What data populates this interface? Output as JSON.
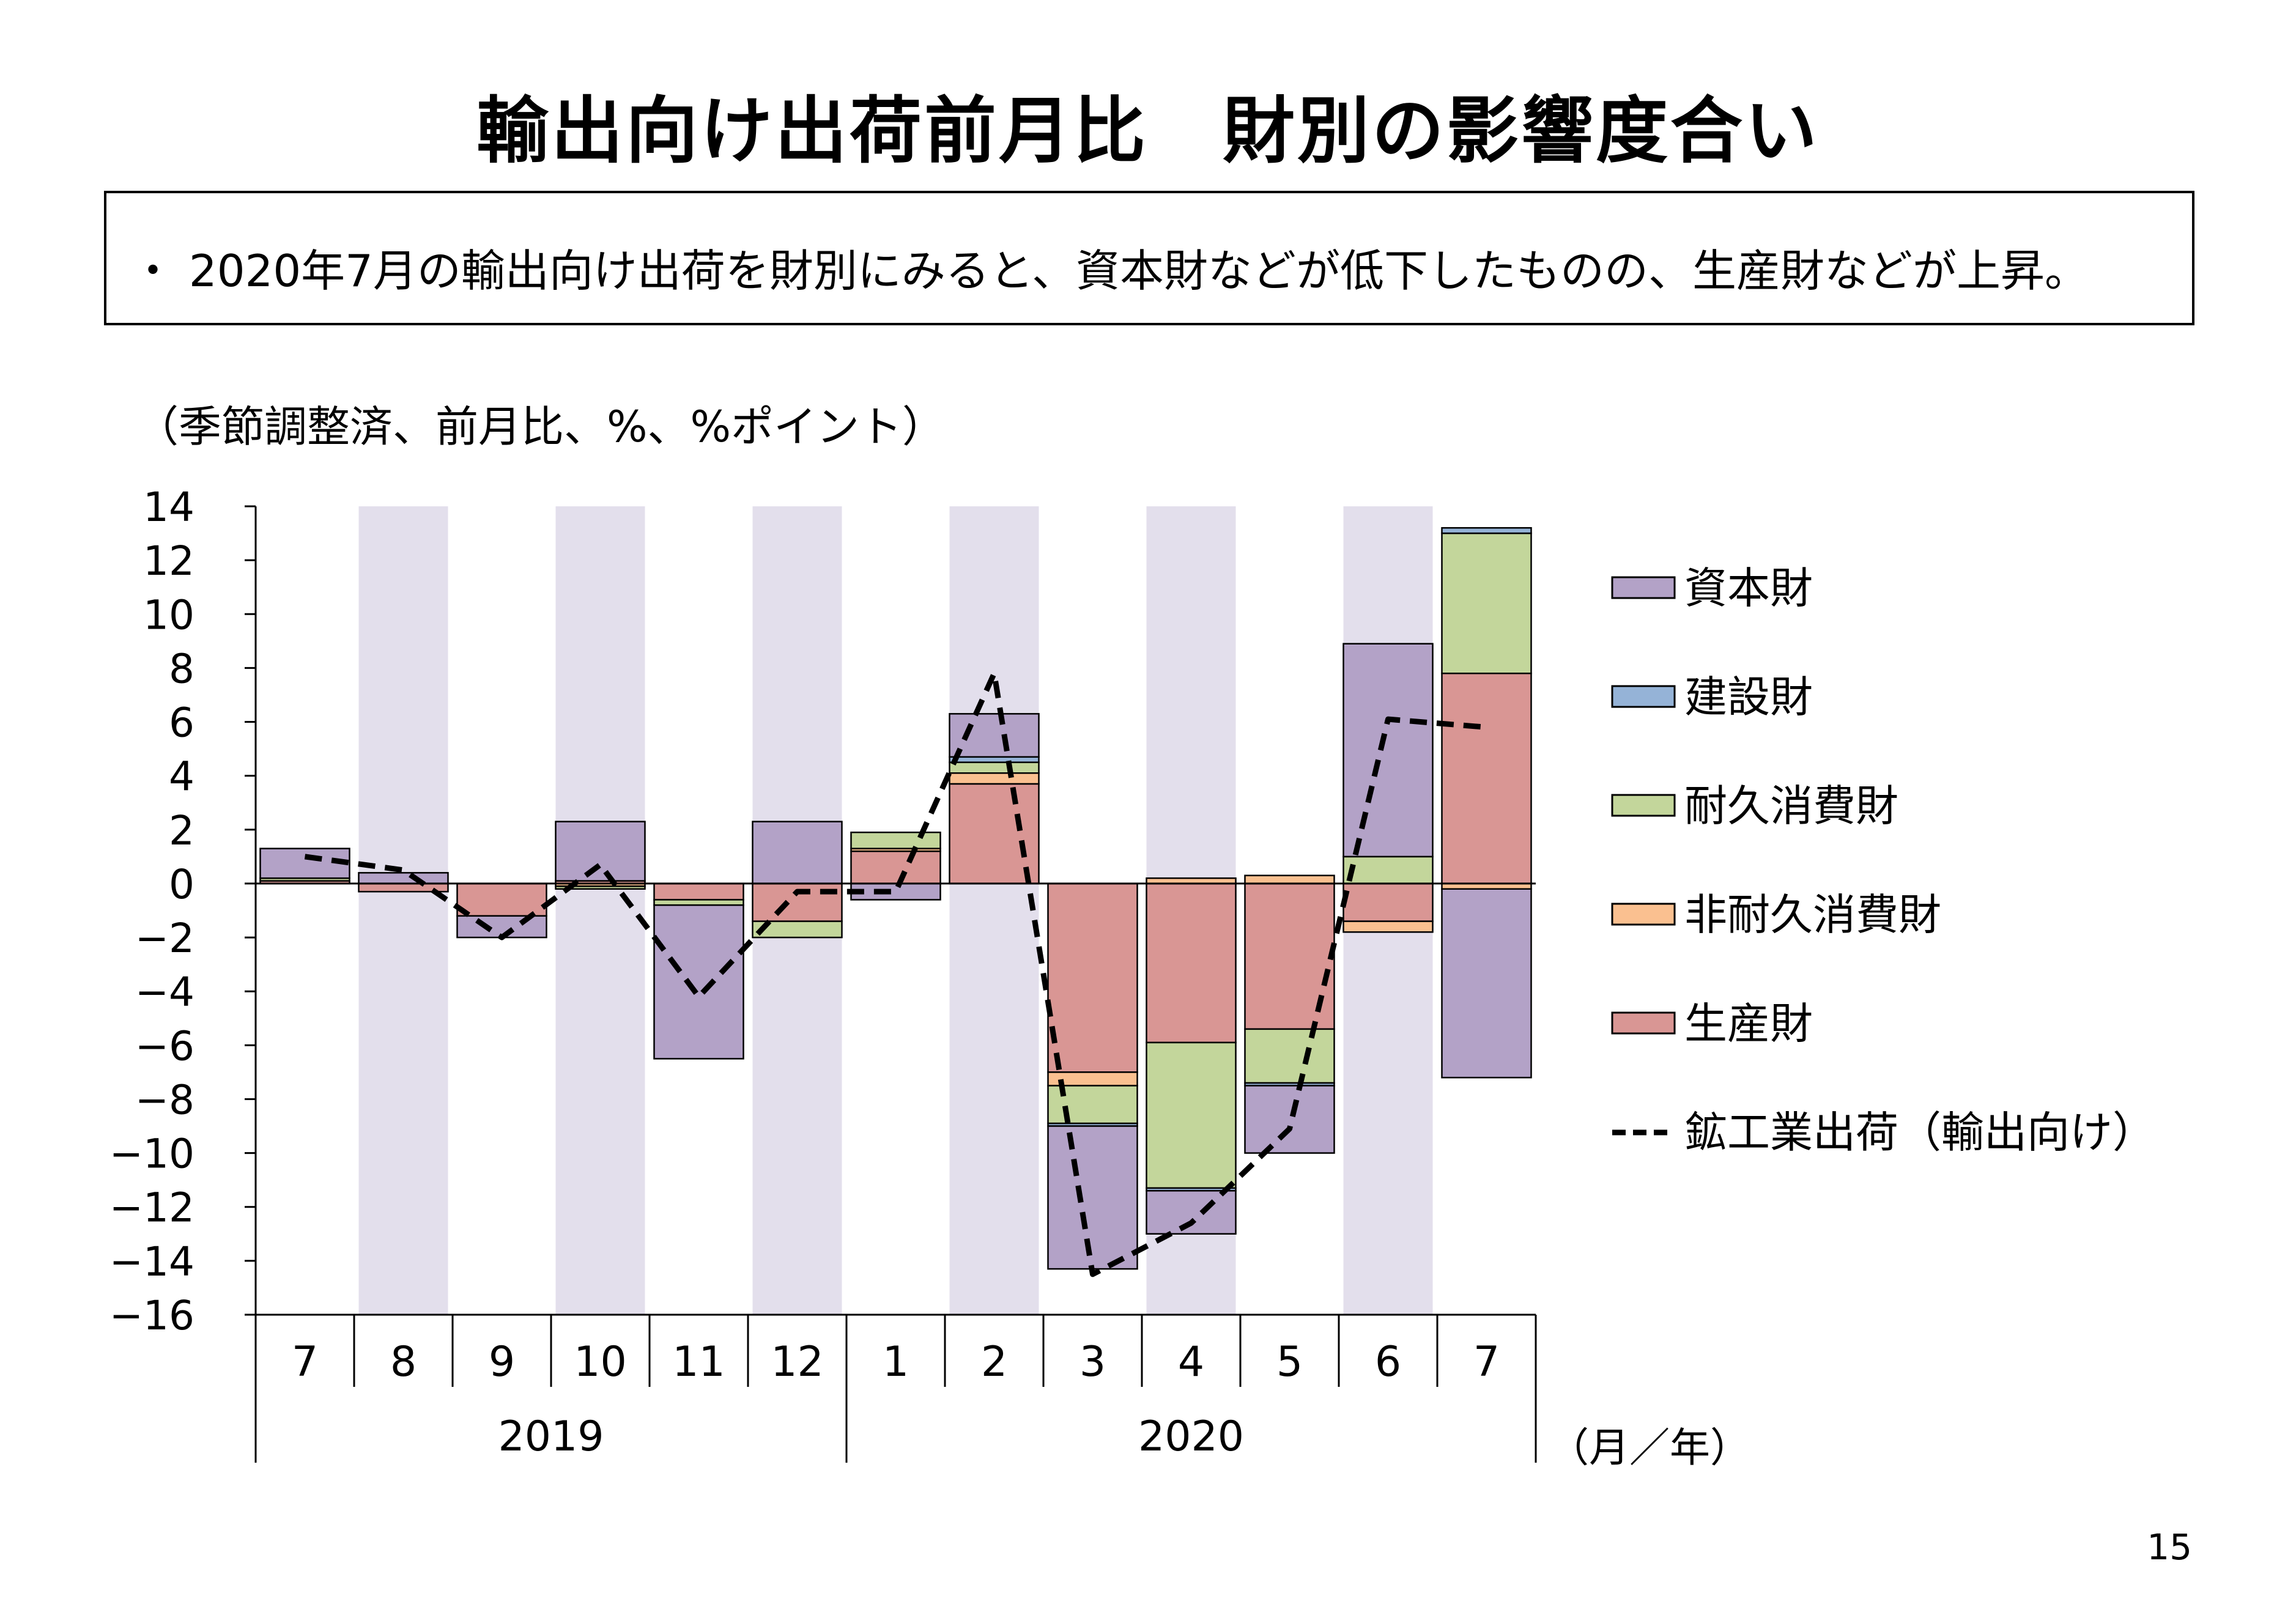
{
  "title": "輸出向け出荷前月比　財別の影響度合い",
  "summary": "・ 2020年7月の輸出向け出荷を財別にみると、資本財などが低下したものの、生産財などが上昇。",
  "unit_note": "（季節調整済、前月比、%、%ポイント）",
  "page_number": "15",
  "chart_data": {
    "type": "bar",
    "stacked": true,
    "categories": [
      "7",
      "8",
      "9",
      "10",
      "11",
      "12",
      "1",
      "2",
      "3",
      "4",
      "5",
      "6",
      "7"
    ],
    "year_labels": [
      {
        "label": "2019",
        "from": 0,
        "to": 5
      },
      {
        "label": "2020",
        "from": 6,
        "to": 12
      }
    ],
    "x_unit": "（月／年）",
    "ylim": [
      -16,
      14
    ],
    "yticks": [
      14,
      12,
      10,
      8,
      6,
      4,
      2,
      0,
      -2,
      -4,
      -6,
      -8,
      -10,
      -12,
      -14,
      -16
    ],
    "ytick_labels": [
      "14",
      "12",
      "10",
      "8",
      "6",
      "4",
      "2",
      "0",
      "−2",
      "−4",
      "−6",
      "−8",
      "−10",
      "−12",
      "−14",
      "−16"
    ],
    "shaded_categories": [
      1,
      3,
      5,
      7,
      9,
      11
    ],
    "shade_color": "#e3dfec",
    "legend_position": "right",
    "series": [
      {
        "name": "生産財",
        "color": "#d99694",
        "values": [
          0.1,
          -0.3,
          -1.2,
          0.1,
          -0.6,
          -1.4,
          1.2,
          3.7,
          -7.0,
          -5.9,
          -5.4,
          -1.4,
          7.8
        ]
      },
      {
        "name": "非耐久消費財",
        "color": "#fac090",
        "values": [
          0.0,
          0.0,
          0.0,
          -0.1,
          0.0,
          0.0,
          0.1,
          0.4,
          -0.5,
          0.2,
          0.3,
          -0.4,
          -0.2
        ]
      },
      {
        "name": "耐久消費財",
        "color": "#c3d69b",
        "values": [
          0.1,
          0.0,
          0.0,
          -0.1,
          -0.2,
          -0.6,
          0.6,
          0.4,
          -1.4,
          -5.4,
          -2.0,
          1.0,
          5.2
        ]
      },
      {
        "name": "建設財",
        "color": "#95b3d7",
        "values": [
          0.0,
          0.0,
          0.0,
          0.0,
          0.0,
          0.0,
          0.0,
          0.2,
          -0.1,
          -0.1,
          -0.1,
          0.0,
          0.2
        ]
      },
      {
        "name": "資本財",
        "color": "#b3a2c7",
        "values": [
          1.1,
          0.4,
          -0.8,
          2.2,
          -5.7,
          2.3,
          -0.6,
          1.6,
          -5.3,
          -1.6,
          -2.5,
          7.9,
          -7.0
        ]
      }
    ],
    "legend_order": [
      "資本財",
      "建設財",
      "耐久消費財",
      "非耐久消費財",
      "生産財"
    ],
    "line": {
      "name": "鉱工業出荷（輸出向け）",
      "style": "dashed",
      "color": "#000000",
      "values": [
        1.0,
        0.5,
        -2.0,
        0.7,
        -4.2,
        -0.3,
        -0.3,
        7.8,
        -14.5,
        -12.6,
        -9.1,
        6.1,
        5.8
      ]
    }
  }
}
